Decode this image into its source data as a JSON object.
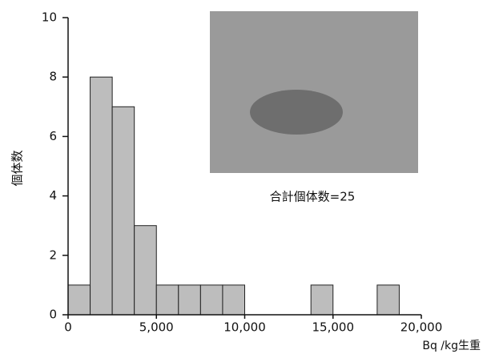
{
  "chart_data": {
    "type": "histogram",
    "y_label": "個体数",
    "x_label": "Bq /kg生重",
    "annotation": "合計個体数=25",
    "bins": [
      0,
      1250,
      2500,
      3750,
      5000,
      6250,
      7500,
      8750,
      10000,
      11250,
      12500,
      13750,
      15000,
      16250,
      17500,
      18750,
      20000
    ],
    "counts": [
      1,
      8,
      7,
      3,
      1,
      1,
      1,
      1,
      0,
      0,
      0,
      1,
      0,
      0,
      1,
      0
    ],
    "color": "#bdbdbd",
    "xlim": [
      0,
      20000
    ],
    "ylim": [
      0,
      10
    ],
    "xticks": [
      0,
      {
        "value": 5000,
        "label": "5,000"
      },
      {
        "value": 10000,
        "label": "10,000"
      },
      {
        "value": 15000,
        "label": "15,000"
      },
      {
        "value": 20000,
        "label": "20,000"
      }
    ],
    "yticks": [
      0,
      2,
      4,
      6,
      8,
      10
    ]
  }
}
